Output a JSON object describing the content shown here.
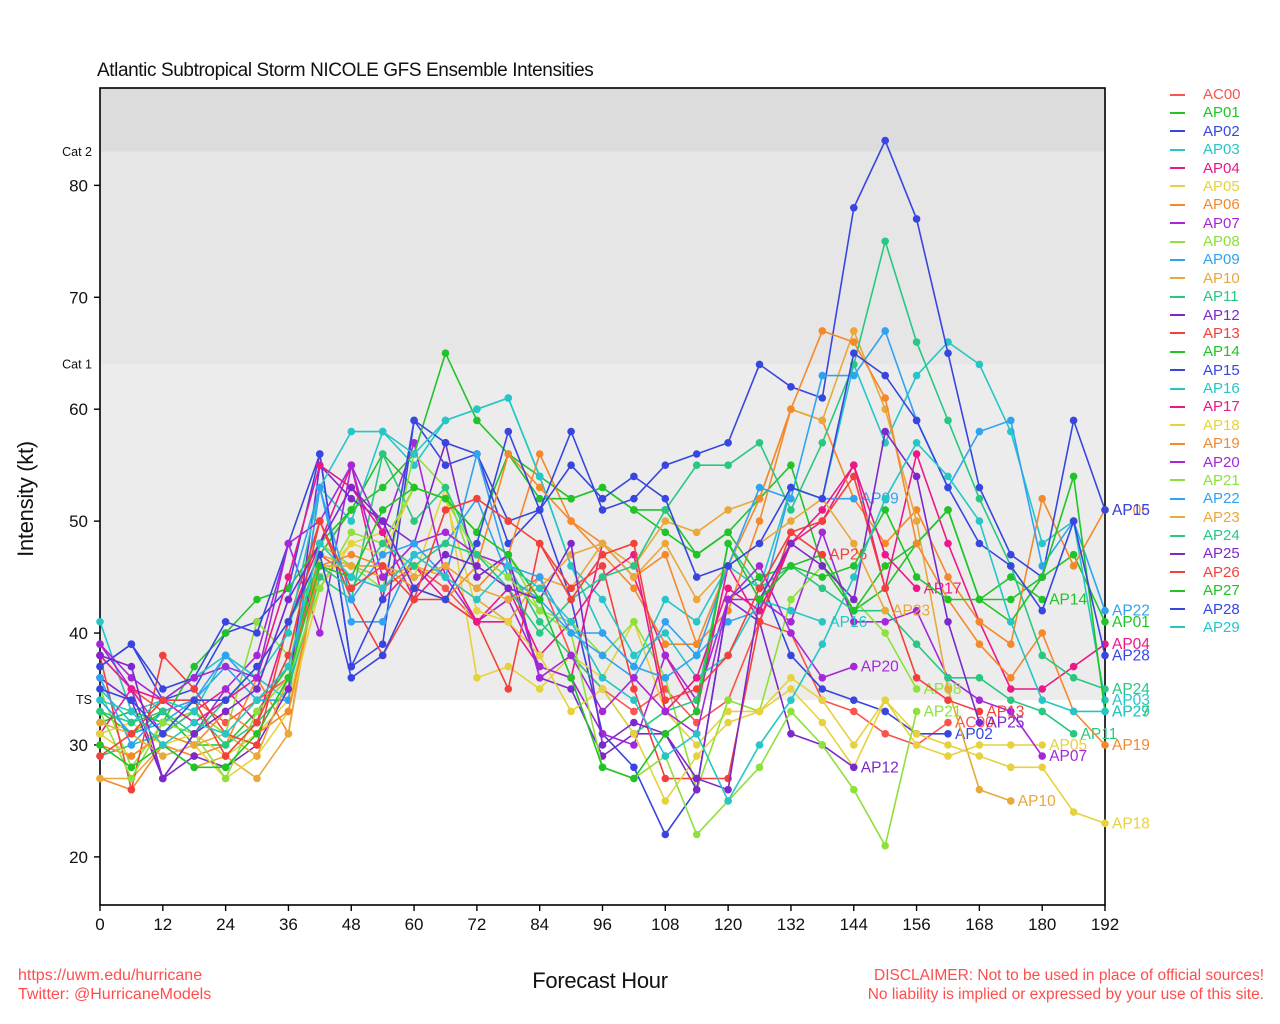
{
  "title": "Atlantic Subtropical Storm NICOLE GFS Ensemble Intensities",
  "x_axis": {
    "label": "Forecast Hour",
    "ticks": [
      0,
      12,
      24,
      36,
      48,
      60,
      72,
      84,
      96,
      108,
      120,
      132,
      144,
      156,
      168,
      180,
      192
    ],
    "range": [
      0,
      192
    ]
  },
  "y_axis": {
    "label": "Intensity (kt)",
    "ticks": [
      20,
      30,
      40,
      50,
      60,
      70,
      80
    ],
    "range": [
      15.7,
      88.7
    ]
  },
  "bands": [
    {
      "label": "TS",
      "from": 34,
      "to": 64,
      "fill": "#ececec"
    },
    {
      "label": "Cat 1",
      "from": 64,
      "to": 83,
      "fill": "#e6e6e6"
    },
    {
      "label": "Cat 2",
      "from": 83,
      "to": null,
      "fill": "#dcdcdc"
    }
  ],
  "footer": {
    "color": "#ff4d4d",
    "links": [
      "https://uwm.edu/hurricane",
      "Twitter: @HurricaneModels"
    ],
    "disclaimer": [
      "DISCLAIMER: Not to be used in place of official sources!",
      "No liability is implied or expressed by your use of this site."
    ]
  },
  "chart_data": {
    "type": "line",
    "title": "Atlantic Subtropical Storm NICOLE GFS Ensemble Intensities",
    "xlabel": "Forecast Hour",
    "ylabel": "Intensity (kt)",
    "x_start": 0,
    "x_step": 6,
    "xlim": [
      0,
      192
    ],
    "ylim": [
      15.7,
      88.7
    ],
    "grid": false,
    "legend_position": "right-outside",
    "series": [
      {
        "name": "AC00",
        "color": "#fa544c",
        "values": [
          38,
          35,
          33,
          34,
          32,
          34,
          36,
          47,
          45,
          44,
          46,
          44,
          41,
          43,
          45,
          38,
          35,
          33,
          35,
          32,
          34,
          41,
          40,
          34,
          33,
          31,
          30,
          32
        ]
      },
      {
        "name": "AP01",
        "color": "#21c428",
        "values": [
          33,
          31,
          33,
          30,
          30,
          33,
          37,
          47,
          51,
          56,
          53,
          52,
          49,
          56,
          54,
          52,
          53,
          51,
          49,
          47,
          49,
          52,
          55,
          46,
          42,
          44,
          48,
          51,
          43,
          43,
          45,
          47,
          41
        ]
      },
      {
        "name": "AP02",
        "color": "#3846e0",
        "values": [
          37,
          39,
          34,
          35,
          40,
          41,
          44,
          56,
          37,
          39,
          59,
          55,
          56,
          48,
          51,
          43,
          31,
          28,
          22,
          26,
          43,
          45,
          38,
          35,
          34,
          33,
          31,
          31
        ]
      },
      {
        "name": "AP03",
        "color": "#26c6c6",
        "values": [
          41,
          33,
          34,
          36,
          38,
          36,
          34,
          53,
          50,
          58,
          55,
          59,
          60,
          61,
          54,
          46,
          40,
          37,
          43,
          41,
          46,
          44,
          53,
          52,
          64,
          57,
          63,
          66,
          64,
          58,
          48,
          50,
          34
        ]
      },
      {
        "name": "AP04",
        "color": "#ec1888",
        "values": [
          38,
          35,
          31,
          33,
          35,
          32,
          41,
          48,
          55,
          43,
          46,
          43,
          41,
          41,
          37,
          36,
          48,
          45,
          38,
          33,
          46,
          41,
          48,
          50,
          55,
          44,
          56,
          48,
          41,
          35,
          35,
          37,
          39
        ]
      },
      {
        "name": "AP05",
        "color": "#e6d23c",
        "values": [
          31,
          32,
          30,
          31,
          29,
          31,
          34,
          45,
          48,
          49,
          45,
          53,
          36,
          37,
          35,
          38,
          36,
          41,
          33,
          30,
          33,
          33,
          35,
          32,
          28,
          34,
          30,
          29,
          30,
          30,
          30
        ]
      },
      {
        "name": "AP06",
        "color": "#f6882c",
        "values": [
          27,
          26,
          30,
          29,
          30,
          36,
          31,
          48,
          46,
          46,
          45,
          46,
          44,
          47,
          56,
          50,
          47,
          44,
          39,
          39,
          42,
          50,
          60,
          59,
          52,
          48,
          51,
          45,
          41,
          39,
          52,
          46,
          51
        ]
      },
      {
        "name": "AP07",
        "color": "#a428d8",
        "values": [
          39,
          35,
          27,
          31,
          35,
          38,
          48,
          40,
          55,
          49,
          57,
          45,
          41,
          43,
          37,
          36,
          31,
          30,
          38,
          34,
          43,
          43,
          41,
          49,
          41,
          41,
          42,
          36,
          34,
          33,
          29
        ]
      },
      {
        "name": "AP08",
        "color": "#8ee03a",
        "values": [
          35,
          28,
          32,
          33,
          31,
          41,
          38,
          48,
          46,
          44,
          56,
          53,
          45,
          47,
          42,
          41,
          38,
          41,
          36,
          26,
          34,
          33,
          43,
          46,
          43,
          40,
          35
        ]
      },
      {
        "name": "AP09",
        "color": "#30a2f2",
        "values": [
          34,
          31,
          32,
          34,
          37,
          34,
          34,
          53,
          41,
          41,
          47,
          48,
          52,
          45,
          43,
          40,
          38,
          36,
          41,
          38,
          41,
          42,
          53,
          52,
          52
        ]
      },
      {
        "name": "AP10",
        "color": "#e8a83a",
        "values": [
          27,
          27,
          30,
          28,
          29,
          27,
          31,
          47,
          46,
          45,
          46,
          45,
          43,
          41,
          45,
          44,
          48,
          46,
          50,
          49,
          51,
          52,
          60,
          59,
          67,
          60,
          50,
          35,
          26,
          25
        ]
      },
      {
        "name": "AP11",
        "color": "#28c882",
        "values": [
          29,
          30,
          31,
          33,
          30,
          32,
          35,
          45,
          43,
          56,
          50,
          53,
          47,
          46,
          41,
          38,
          35,
          31,
          33,
          34,
          48,
          44,
          46,
          44,
          42,
          42,
          39,
          36,
          36,
          34,
          33,
          31
        ]
      },
      {
        "name": "AP12",
        "color": "#7c28cc",
        "values": [
          36,
          34,
          27,
          29,
          28,
          30,
          35,
          55,
          52,
          50,
          48,
          57,
          45,
          47,
          36,
          35,
          29,
          31,
          31,
          26,
          43,
          41,
          31,
          30,
          28
        ]
      },
      {
        "name": "AP13",
        "color": "#f4403a",
        "values": [
          38,
          26,
          38,
          35,
          31,
          30,
          41,
          50,
          43,
          38,
          43,
          43,
          41,
          35,
          48,
          44,
          46,
          35,
          27,
          27,
          27,
          41,
          49,
          50,
          54,
          44,
          36,
          34,
          33
        ]
      },
      {
        "name": "AP14",
        "color": "#21c428",
        "values": [
          32,
          33,
          32,
          37,
          40,
          43,
          44,
          48,
          51,
          53,
          56,
          65,
          59,
          56,
          52,
          52,
          53,
          51,
          51,
          47,
          49,
          45,
          46,
          47,
          42,
          46,
          48,
          51,
          43,
          45,
          43
        ]
      },
      {
        "name": "AP15",
        "color": "#3846e0",
        "values": [
          37,
          39,
          35,
          36,
          41,
          40,
          48,
          56,
          37,
          43,
          59,
          57,
          56,
          50,
          51,
          58,
          51,
          52,
          55,
          56,
          57,
          64,
          62,
          61,
          78,
          84,
          77,
          65,
          53,
          47,
          45,
          59,
          51
        ]
      },
      {
        "name": "AP16",
        "color": "#26c6c6",
        "values": [
          35,
          32,
          34,
          33,
          38,
          36,
          40,
          53,
          58,
          58,
          56,
          59,
          60,
          61,
          54,
          46,
          43,
          38,
          40,
          36,
          38,
          43,
          42,
          41
        ]
      },
      {
        "name": "AP17",
        "color": "#ec1888",
        "values": [
          31,
          35,
          34,
          32,
          34,
          36,
          45,
          55,
          53,
          49,
          43,
          46,
          41,
          44,
          38,
          41,
          45,
          47,
          33,
          36,
          44,
          42,
          48,
          51,
          55,
          47,
          44
        ]
      },
      {
        "name": "AP18",
        "color": "#e6d23c",
        "values": [
          31,
          29,
          31,
          30,
          27,
          29,
          33,
          44,
          48,
          47,
          53,
          52,
          42,
          41,
          38,
          33,
          35,
          31,
          25,
          29,
          32,
          33,
          36,
          34,
          30,
          34,
          31,
          30,
          29,
          28,
          28,
          24,
          23
        ]
      },
      {
        "name": "AP19",
        "color": "#f6882c",
        "values": [
          30,
          29,
          31,
          30,
          33,
          31,
          33,
          46,
          47,
          46,
          44,
          43,
          46,
          56,
          53,
          50,
          48,
          45,
          47,
          39,
          46,
          52,
          60,
          67,
          66,
          61,
          48,
          43,
          39,
          36,
          40,
          33,
          30
        ]
      },
      {
        "name": "AP20",
        "color": "#a428d8",
        "values": [
          39,
          36,
          34,
          36,
          37,
          36,
          48,
          50,
          55,
          45,
          48,
          49,
          47,
          46,
          36,
          38,
          33,
          36,
          33,
          31,
          43,
          46,
          40,
          36,
          37
        ]
      },
      {
        "name": "AP21",
        "color": "#8ee03a",
        "values": [
          33,
          27,
          32,
          31,
          27,
          33,
          36,
          44,
          49,
          48,
          53,
          52,
          47,
          45,
          42,
          40,
          28,
          27,
          29,
          22,
          25,
          28,
          33,
          30,
          26,
          21,
          33
        ]
      },
      {
        "name": "AP22",
        "color": "#30a2f2",
        "values": [
          36,
          30,
          33,
          34,
          38,
          35,
          43,
          53,
          43,
          47,
          48,
          45,
          56,
          46,
          45,
          40,
          40,
          37,
          36,
          38,
          46,
          53,
          52,
          63,
          63,
          67,
          59,
          53,
          58,
          59,
          46,
          50,
          42
        ]
      },
      {
        "name": "AP23",
        "color": "#e8a83a",
        "values": [
          32,
          31,
          29,
          30,
          31,
          29,
          36,
          46,
          46,
          46,
          45,
          46,
          44,
          43,
          44,
          47,
          48,
          45,
          48,
          43,
          46,
          48,
          50,
          52,
          48,
          42
        ]
      },
      {
        "name": "AP24",
        "color": "#28c882",
        "values": [
          33,
          32,
          33,
          31,
          34,
          37,
          41,
          46,
          44,
          48,
          46,
          48,
          47,
          44,
          40,
          43,
          45,
          46,
          51,
          55,
          55,
          57,
          51,
          57,
          64,
          75,
          66,
          59,
          52,
          46,
          38,
          36,
          35
        ]
      },
      {
        "name": "AP25",
        "color": "#7c28cc",
        "values": [
          38,
          37,
          27,
          31,
          33,
          35,
          43,
          48,
          53,
          50,
          44,
          47,
          46,
          44,
          43,
          48,
          30,
          32,
          31,
          27,
          26,
          43,
          48,
          46,
          43,
          58,
          54,
          41,
          32
        ]
      },
      {
        "name": "AP26",
        "color": "#f4403a",
        "values": [
          29,
          31,
          34,
          34,
          29,
          32,
          38,
          50,
          44,
          46,
          43,
          51,
          52,
          50,
          48,
          43,
          47,
          48,
          34,
          35,
          38,
          44,
          49,
          47
        ]
      },
      {
        "name": "AP27",
        "color": "#21c428",
        "values": [
          30,
          28,
          30,
          28,
          28,
          31,
          36,
          46,
          45,
          51,
          53,
          52,
          49,
          47,
          43,
          36,
          28,
          27,
          31,
          33,
          48,
          43,
          46,
          45,
          46,
          51,
          45,
          43,
          43,
          41,
          45,
          54,
          33
        ]
      },
      {
        "name": "AP28",
        "color": "#3846e0",
        "values": [
          35,
          34,
          31,
          34,
          34,
          37,
          41,
          47,
          36,
          38,
          44,
          43,
          48,
          58,
          51,
          55,
          52,
          54,
          52,
          45,
          46,
          48,
          53,
          52,
          65,
          63,
          59,
          53,
          48,
          46,
          42,
          50,
          38
        ]
      },
      {
        "name": "AP29",
        "color": "#26c6c6",
        "values": [
          34,
          33,
          30,
          32,
          31,
          34,
          37,
          48,
          45,
          44,
          47,
          45,
          43,
          46,
          44,
          41,
          36,
          34,
          29,
          31,
          25,
          30,
          34,
          39,
          45,
          52,
          57,
          54,
          50,
          41,
          34,
          33,
          33
        ]
      }
    ]
  }
}
